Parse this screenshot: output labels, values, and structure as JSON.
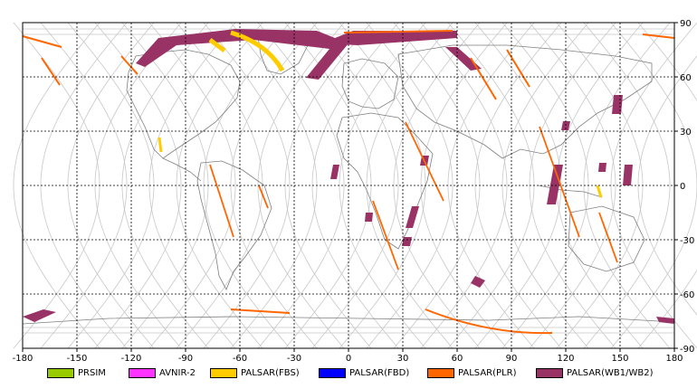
{
  "map": {
    "lon_ticks": [
      "-180",
      "-150",
      "-120",
      "-90",
      "-60",
      "-30",
      "0",
      "30",
      "60",
      "90",
      "120",
      "150",
      "180"
    ],
    "lat_ticks": [
      "90",
      "60",
      "30",
      "0",
      "-30",
      "-60",
      "-90"
    ],
    "colors": {
      "land_outline": "#7f7f7f",
      "orbit_track": "#c8c8c8",
      "grid": "#000000",
      "frame": "#000000"
    },
    "extent": {
      "lon": [
        -180,
        180
      ],
      "lat": [
        -90,
        90
      ]
    }
  },
  "legend": {
    "items": [
      {
        "label": "PRSIM",
        "color": "#99cc00"
      },
      {
        "label": "AVNIR-2",
        "color": "#ff33ff"
      },
      {
        "label": "PALSAR(FBS)",
        "color": "#ffcc00"
      },
      {
        "label": "PALSAR(FBD)",
        "color": "#0000ff"
      },
      {
        "label": "PALSAR(PLR)",
        "color": "#ff6600"
      },
      {
        "label": "PALSAR(WB1/WB2)",
        "color": "#993366"
      }
    ]
  }
}
